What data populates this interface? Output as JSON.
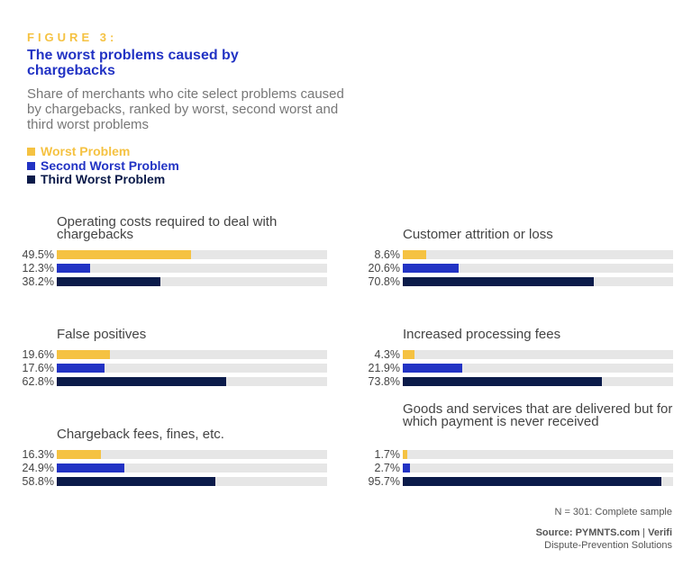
{
  "figure_label": "FIGURE 3:",
  "title": "The worst problems caused by chargebacks",
  "subtitle": "Share of merchants who cite select problems caused by chargebacks, ranked by worst, second worst and third worst problems",
  "note": "N = 301: Complete sample",
  "source_bold": "Source: PYMNTS.com",
  "source_sep": " | ",
  "source_brand": "Verifi",
  "source_sub": "Dispute-Prevention Solutions",
  "colors": {
    "worst": "#F5C242",
    "second": "#2233C4",
    "third": "#0B1B4A",
    "track": "#E6E6E6"
  },
  "chart_data": {
    "type": "bar",
    "orientation": "horizontal",
    "xlim": [
      0,
      100
    ],
    "unit": "%",
    "legend": [
      "Worst Problem",
      "Second Worst Problem",
      "Third Worst Problem"
    ],
    "legend_placement": "top-left",
    "groups": [
      {
        "label": "Operating costs required to deal with chargebacks",
        "values": [
          49.5,
          12.3,
          38.2
        ],
        "labels": [
          "49.5%",
          "12.3%",
          "38.2%"
        ]
      },
      {
        "label": "Customer attrition or loss",
        "values": [
          8.6,
          20.6,
          70.8
        ],
        "labels": [
          "8.6%",
          "20.6%",
          "70.8%"
        ]
      },
      {
        "label": "False positives",
        "values": [
          19.6,
          17.6,
          62.8
        ],
        "labels": [
          "19.6%",
          "17.6%",
          "62.8%"
        ]
      },
      {
        "label": "Increased processing fees",
        "values": [
          4.3,
          21.9,
          73.8
        ],
        "labels": [
          "4.3%",
          "21.9%",
          "73.8%"
        ]
      },
      {
        "label": "Chargeback fees, fines, etc.",
        "values": [
          16.3,
          24.9,
          58.8
        ],
        "labels": [
          "16.3%",
          "24.9%",
          "58.8%"
        ]
      },
      {
        "label": "Goods and services that are delivered but for which payment is never received",
        "values": [
          1.7,
          2.7,
          95.7
        ],
        "labels": [
          "1.7%",
          "2.7%",
          "95.7%"
        ]
      }
    ]
  }
}
